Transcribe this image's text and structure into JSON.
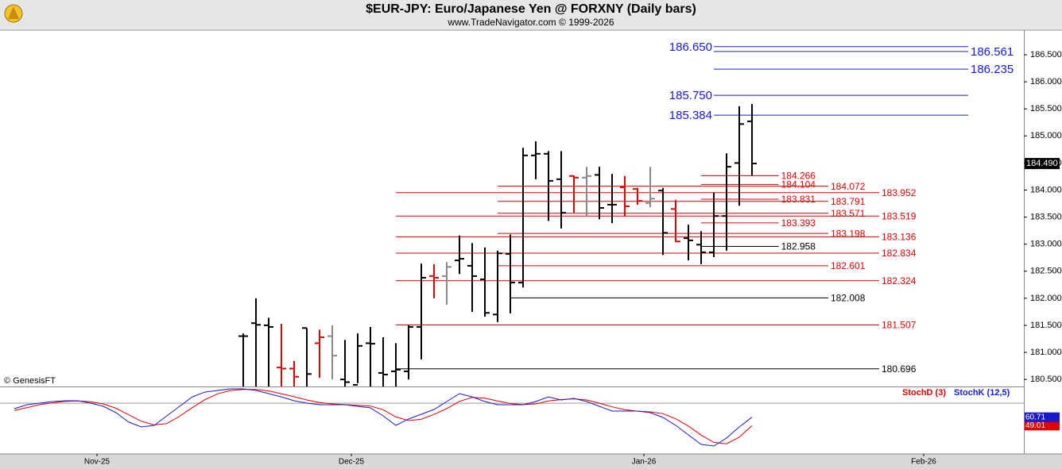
{
  "chart_data": [
    {
      "type": "ohlc",
      "title": "$EUR-JPY:  Euro/Japanese Yen @ FORXNY  (Daily bars)",
      "subtitle": "www.TradeNavigator.com © 1999-2026",
      "source": "© GenesisFT",
      "x": [
        0,
        1,
        2,
        3,
        4,
        5,
        6,
        7,
        8,
        9,
        10,
        11,
        12,
        13,
        14,
        15,
        16,
        17,
        18,
        19,
        20,
        21,
        22,
        23,
        24,
        25,
        26,
        27,
        28,
        29,
        30,
        31,
        32,
        33,
        34,
        35,
        36,
        37,
        38,
        39,
        40
      ],
      "open": [
        181.3,
        181.54,
        181.5,
        180.72,
        180.7,
        181.45,
        181.17,
        181.3,
        180.5,
        180.4,
        181.17,
        180.62,
        180.65,
        180.65,
        181.47,
        182.41,
        182.41,
        182.7,
        182.6,
        182.35,
        181.7,
        182.82,
        182.29,
        184.64,
        184.67,
        184.2,
        184.26,
        184.23,
        184.28,
        183.73,
        184.05,
        184.02,
        183.76,
        183.99,
        183.65,
        183.11,
        182.99,
        182.85,
        183.52,
        184.5,
        185.27
      ],
      "high": [
        181.35,
        182.0,
        181.64,
        181.53,
        180.84,
        181.45,
        181.42,
        181.5,
        181.23,
        181.35,
        181.47,
        181.28,
        181.17,
        181.5,
        182.64,
        182.63,
        182.67,
        183.16,
        183.02,
        182.94,
        182.88,
        183.18,
        184.78,
        184.9,
        184.72,
        184.72,
        184.27,
        184.43,
        184.43,
        184.3,
        184.26,
        184.04,
        184.43,
        184.04,
        183.82,
        183.36,
        183.24,
        183.95,
        184.68,
        185.55,
        185.59
      ],
      "low": [
        180.3,
        180.3,
        180.3,
        180.3,
        180.3,
        180.3,
        180.53,
        180.5,
        180.3,
        180.43,
        180.3,
        180.3,
        180.3,
        180.5,
        180.87,
        182.0,
        181.88,
        182.45,
        181.75,
        181.66,
        181.56,
        181.72,
        182.2,
        184.2,
        183.43,
        183.29,
        183.58,
        183.52,
        183.46,
        183.39,
        183.51,
        183.73,
        183.68,
        182.8,
        183.04,
        182.7,
        182.63,
        182.76,
        182.88,
        183.71,
        184.27
      ],
      "close": [
        181.3,
        181.51,
        181.47,
        180.7,
        180.55,
        180.6,
        181.28,
        180.94,
        180.45,
        181.12,
        181.16,
        180.59,
        180.68,
        181.47,
        182.38,
        182.38,
        182.58,
        182.73,
        182.41,
        181.73,
        182.83,
        182.29,
        184.64,
        184.67,
        184.17,
        183.58,
        184.23,
        184.26,
        183.67,
        183.73,
        183.7,
        183.8,
        183.84,
        183.21,
        183.05,
        183.07,
        182.85,
        183.52,
        184.43,
        185.22,
        184.49
      ],
      "bar_colors": [
        "#000",
        "#000",
        "#000",
        "#e00000",
        "#e00000",
        "#000",
        "#e00000",
        "#888888",
        "#000",
        "#000",
        "#000",
        "#000",
        "#000",
        "#000",
        "#000",
        "#e00000",
        "#888888",
        "#000",
        "#000",
        "#000",
        "#000",
        "#000",
        "#000",
        "#000",
        "#000",
        "#000",
        "#e00000",
        "#888888",
        "#000",
        "#000",
        "#e00000",
        "#e00000",
        "#888888",
        "#000",
        "#e00000",
        "#000",
        "#000",
        "#000",
        "#000",
        "#000",
        "#000"
      ],
      "last_price_label": "184.490",
      "xlim": [
        -19.125,
        61.375
      ],
      "ylim": [
        180.37,
        186.955
      ],
      "yticks": [
        {
          "value": 180.5,
          "label": "180.500"
        },
        {
          "value": 181,
          "label": "181.000"
        },
        {
          "value": 181.5,
          "label": "181.500"
        },
        {
          "value": 182,
          "label": "182.000"
        },
        {
          "value": 182.5,
          "label": "182.500"
        },
        {
          "value": 183,
          "label": "183.000"
        },
        {
          "value": 183.5,
          "label": "183.500"
        },
        {
          "value": 184,
          "label": "184.000"
        },
        {
          "value": 184.5,
          "label": "184.500"
        },
        {
          "value": 185,
          "label": "185.000"
        },
        {
          "value": 185.5,
          "label": "185.500"
        },
        {
          "value": 186,
          "label": "186.000"
        },
        {
          "value": 186.5,
          "label": "186.500"
        }
      ],
      "levels": [
        {
          "value": 186.65,
          "label": "186.650",
          "color": "#1a1acc",
          "x": [
            37,
            57
          ],
          "side": "left"
        },
        {
          "value": 186.561,
          "label": "186.561",
          "color": "#1a1acc",
          "x": [
            37,
            57
          ],
          "side": "right"
        },
        {
          "value": 186.235,
          "label": "186.235",
          "color": "#1a1acc",
          "x": [
            37,
            57
          ],
          "side": "right"
        },
        {
          "value": 185.75,
          "label": "185.750",
          "color": "#1a1acc",
          "x": [
            37,
            57
          ],
          "side": "left"
        },
        {
          "value": 185.384,
          "label": "185.384",
          "color": "#1a1acc",
          "x": [
            37,
            57
          ],
          "side": "left"
        },
        {
          "value": 184.266,
          "label": "184.266",
          "color": "#e00000",
          "x": [
            36,
            42.1
          ],
          "side": "right"
        },
        {
          "value": 184.104,
          "label": "184.104",
          "color": "#e00000",
          "x": [
            36,
            42.1
          ],
          "side": "right"
        },
        {
          "value": 184.072,
          "label": "184.072",
          "color": "#e00000",
          "x": [
            20,
            46
          ],
          "side": "right"
        },
        {
          "value": 183.952,
          "label": "183.952",
          "color": "#e00000",
          "x": [
            12,
            50
          ],
          "side": "right"
        },
        {
          "value": 183.831,
          "label": "183.831",
          "color": "#e00000",
          "x": [
            36,
            42.1
          ],
          "side": "right"
        },
        {
          "value": 183.791,
          "label": "183.791",
          "color": "#e00000",
          "x": [
            20,
            46
          ],
          "side": "right"
        },
        {
          "value": 183.571,
          "label": "183.571",
          "color": "#e00000",
          "x": [
            20,
            46
          ],
          "side": "right"
        },
        {
          "value": 183.519,
          "label": "183.519",
          "color": "#e00000",
          "x": [
            12,
            50
          ],
          "side": "right"
        },
        {
          "value": 183.393,
          "label": "183.393",
          "color": "#e00000",
          "x": [
            36,
            42.1
          ],
          "side": "right"
        },
        {
          "value": 183.198,
          "label": "183.198",
          "color": "#e00000",
          "x": [
            20,
            46
          ],
          "side": "right"
        },
        {
          "value": 183.136,
          "label": "183.136",
          "color": "#e00000",
          "x": [
            12,
            50
          ],
          "side": "right"
        },
        {
          "value": 182.958,
          "label": "182.958",
          "color": "#000000",
          "x": [
            36,
            42.1
          ],
          "side": "right"
        },
        {
          "value": 182.834,
          "label": "182.834",
          "color": "#e00000",
          "x": [
            12,
            50
          ],
          "side": "right"
        },
        {
          "value": 182.601,
          "label": "182.601",
          "color": "#e00000",
          "x": [
            20,
            46
          ],
          "side": "right"
        },
        {
          "value": 182.324,
          "label": "182.324",
          "color": "#e00000",
          "x": [
            12,
            50
          ],
          "side": "right"
        },
        {
          "value": 182.008,
          "label": "182.008",
          "color": "#000000",
          "x": [
            21,
            46
          ],
          "side": "right"
        },
        {
          "value": 181.507,
          "label": "181.507",
          "color": "#e00000",
          "x": [
            12,
            50
          ],
          "side": "right"
        },
        {
          "value": 180.696,
          "label": "180.696",
          "color": "#000000",
          "x": [
            12,
            50
          ],
          "side": "right"
        }
      ]
    },
    {
      "type": "line",
      "x": [
        -18,
        -17,
        -16,
        -15,
        -14,
        -13,
        -12,
        -11,
        -10,
        -9,
        -8,
        -7,
        -6,
        -5,
        -4,
        -3,
        -2,
        -1,
        0,
        1,
        2,
        3,
        4,
        5,
        6,
        7,
        8,
        9,
        10,
        11,
        12,
        13,
        14,
        15,
        16,
        17,
        18,
        19,
        20,
        21,
        22,
        23,
        24,
        25,
        26,
        27,
        28,
        29,
        30,
        31,
        32,
        33,
        34,
        35,
        36,
        37,
        38,
        39,
        40
      ],
      "xlim": [
        -19.125,
        61.375
      ],
      "ylim": [
        10,
        102
      ],
      "ref_lines": [
        80
      ],
      "xticks": [
        {
          "value": -11.5,
          "label": "Nov-25"
        },
        {
          "value": 8.5,
          "label": "Dec-25"
        },
        {
          "value": 31.5,
          "label": "Jan-26"
        },
        {
          "value": 53.5,
          "label": "Feb-26"
        }
      ],
      "series": [
        {
          "name": "StochD (3)",
          "color": "#e00000",
          "values": [
            70,
            74,
            78,
            80.5,
            82.5,
            83,
            82,
            79,
            73,
            64,
            55,
            50,
            52,
            62,
            74,
            85,
            93,
            97.5,
            99,
            99,
            97,
            93,
            89,
            84.5,
            81,
            79,
            78,
            77,
            76,
            71,
            61,
            56,
            58,
            64.5,
            72.5,
            82.5,
            88,
            87,
            83,
            79.5,
            78,
            79,
            83,
            85,
            86,
            84.5,
            80,
            75,
            71,
            69,
            68,
            65.5,
            58.5,
            48.5,
            36,
            26,
            24,
            33,
            49.01
          ]
        },
        {
          "name": "StochK (12,5)",
          "color": "#1a1acc",
          "values": [
            72.4,
            77.9,
            80.1,
            82.3,
            83.4,
            83.4,
            80.1,
            75.7,
            66.9,
            53.8,
            47.2,
            49.4,
            62.6,
            75.7,
            88.8,
            95.4,
            97.6,
            99.8,
            99.8,
            97.6,
            93.2,
            88.8,
            83.4,
            80.1,
            77.9,
            77.9,
            77.9,
            75.7,
            73.5,
            62.6,
            49.4,
            58.2,
            64.8,
            71.3,
            82.3,
            93.2,
            88.8,
            82.3,
            77.9,
            77.9,
            77.9,
            82.3,
            88.8,
            84.5,
            86.7,
            82.3,
            75.7,
            69.1,
            69.1,
            69.1,
            66.9,
            60.4,
            49.4,
            36.3,
            23.1,
            21.0,
            31.9,
            47.2,
            60.71
          ]
        }
      ]
    }
  ]
}
